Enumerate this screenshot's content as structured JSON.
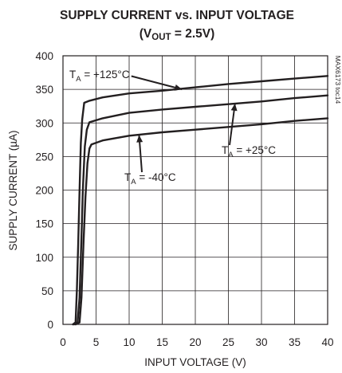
{
  "chart_data": {
    "type": "line",
    "title_line1": "SUPPLY CURRENT vs. INPUT VOLTAGE",
    "title_line2_prefix": "(V",
    "title_line2_sub": "OUT",
    "title_line2_suffix": " = 2.5V)",
    "xlabel": "INPUT VOLTAGE (V)",
    "ylabel": "SUPPLY CURRENT (µA)",
    "side_label": "MAX6173 toc14",
    "xlim": [
      0,
      40
    ],
    "ylim": [
      0,
      400
    ],
    "xticks": [
      0,
      5,
      10,
      15,
      20,
      25,
      30,
      35,
      40
    ],
    "yticks": [
      0,
      50,
      100,
      150,
      200,
      250,
      300,
      350,
      400
    ],
    "grid": true,
    "series": [
      {
        "name_prefix": "T",
        "name_sub": "A",
        "name_suffix": " = +125°C",
        "x": [
          1.5,
          1.9,
          2.1,
          2.3,
          2.5,
          2.7,
          2.9,
          3.2,
          4,
          6,
          10,
          15,
          20,
          25,
          30,
          35,
          40
        ],
        "y": [
          0,
          3,
          50,
          120,
          200,
          270,
          305,
          330,
          333,
          338,
          344,
          348,
          353,
          358,
          362,
          366,
          370
        ]
      },
      {
        "name_prefix": "T",
        "name_sub": "A",
        "name_suffix": " = +25°C",
        "x": [
          1.7,
          2.2,
          2.5,
          2.8,
          3.0,
          3.3,
          3.6,
          4,
          6,
          10,
          15,
          20,
          25,
          30,
          35,
          40
        ],
        "y": [
          0,
          3,
          40,
          130,
          200,
          265,
          290,
          301,
          307,
          315,
          320,
          324,
          328,
          332,
          337,
          341
        ]
      },
      {
        "name_prefix": "T",
        "name_sub": "A",
        "name_suffix": " = -40°C",
        "x": [
          1.9,
          2.5,
          2.8,
          3.1,
          3.4,
          3.7,
          4.0,
          4.3,
          6,
          10,
          15,
          20,
          25,
          30,
          35,
          40
        ],
        "y": [
          0,
          3,
          40,
          120,
          190,
          240,
          262,
          268,
          274,
          281,
          286,
          290,
          294,
          298,
          303,
          307
        ]
      }
    ]
  }
}
